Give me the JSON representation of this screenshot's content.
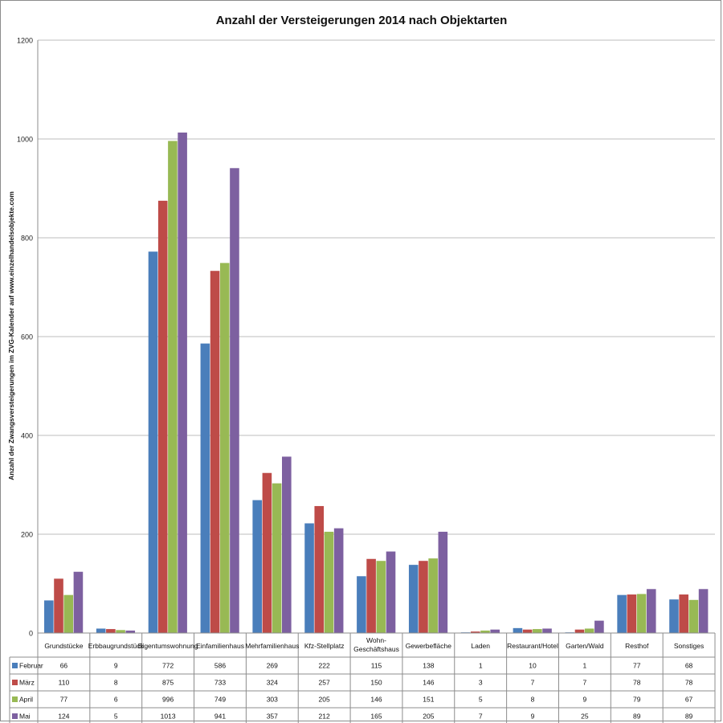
{
  "chart_data": {
    "type": "bar",
    "title": "Anzahl der Versteigerungen 2014 nach Objektarten",
    "ylabel": "Anzahl der Zwangsversteigerungen im ZVG-Kalender auf www.einzelhandelsobjekte.com",
    "ylim": [
      0,
      1200
    ],
    "yticks": [
      0,
      200,
      400,
      600,
      800,
      1000,
      1200
    ],
    "grid": true,
    "legend": "data-table",
    "categories": [
      [
        "Grundstücke"
      ],
      [
        "Erbbaugrundstück"
      ],
      [
        "Eigentumswohnung"
      ],
      [
        "Einfamilienhaus"
      ],
      [
        "Mehrfamilienhaus"
      ],
      [
        "Kfz-Stellplatz"
      ],
      [
        "Wohn-",
        "Geschäftshaus"
      ],
      [
        "Gewerbefläche"
      ],
      [
        "Laden"
      ],
      [
        "Restaurant/Hotel"
      ],
      [
        "Garten/Wald"
      ],
      [
        "Resthof"
      ],
      [
        "Sonstiges"
      ]
    ],
    "series": [
      {
        "name": "Februar",
        "color": "#4a7ebb",
        "values": [
          66,
          9,
          772,
          586,
          269,
          222,
          115,
          138,
          1,
          10,
          1,
          77,
          68
        ]
      },
      {
        "name": "März",
        "color": "#be4b48",
        "values": [
          110,
          8,
          875,
          733,
          324,
          257,
          150,
          146,
          3,
          7,
          7,
          78,
          78
        ]
      },
      {
        "name": "April",
        "color": "#98b954",
        "values": [
          77,
          6,
          996,
          749,
          303,
          205,
          146,
          151,
          5,
          8,
          9,
          79,
          67
        ]
      },
      {
        "name": "Mai",
        "color": "#7d60a0",
        "values": [
          124,
          5,
          1013,
          941,
          357,
          212,
          165,
          205,
          7,
          9,
          25,
          89,
          89
        ]
      }
    ]
  }
}
